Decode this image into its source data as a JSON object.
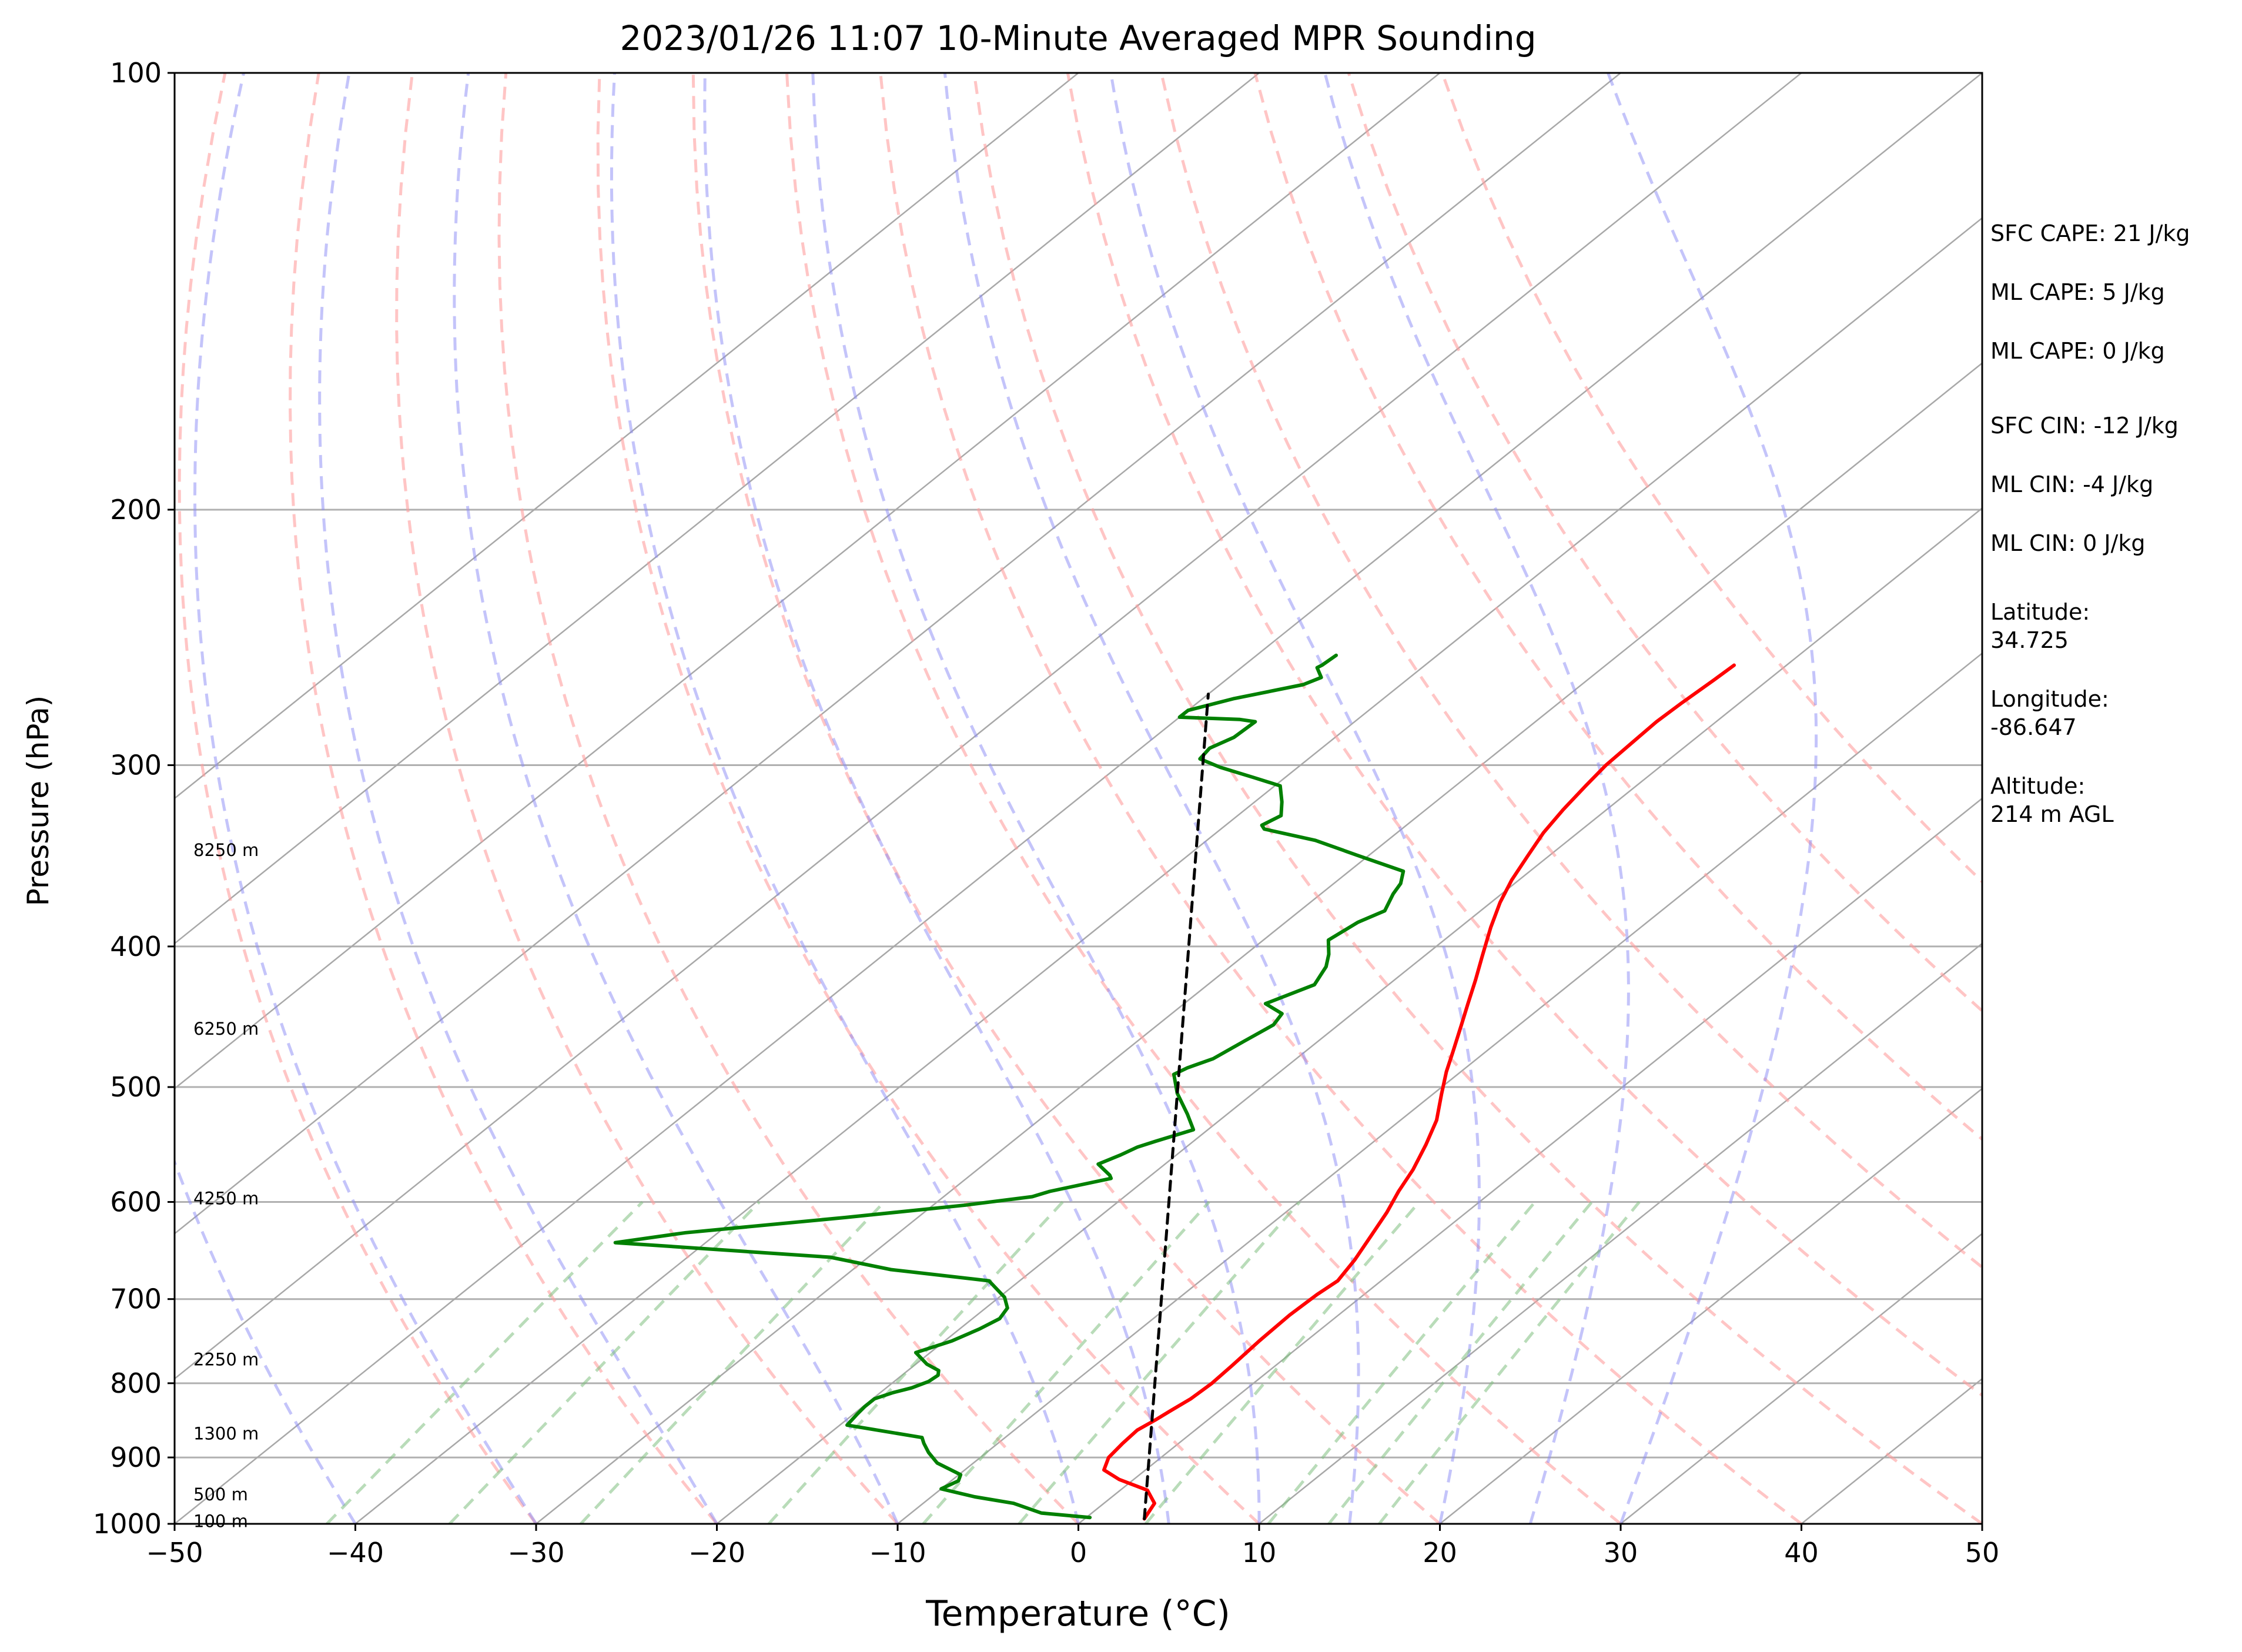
{
  "chart_data": {
    "type": "line",
    "title": "2023/01/26 11:07 10-Minute Averaged MPR Sounding",
    "xlabel": "Temperature (°C)",
    "ylabel": "Pressure (hPa)",
    "xlim": [
      -50,
      50
    ],
    "ylim": [
      1000,
      100
    ],
    "y_scale": "log",
    "x_ticks": [
      "−50",
      "−40",
      "−30",
      "−20",
      "−10",
      "0",
      "10",
      "20",
      "30",
      "40",
      "50"
    ],
    "y_ticks": [
      "100",
      "200",
      "300",
      "400",
      "500",
      "600",
      "700",
      "800",
      "900",
      "1000"
    ],
    "height_labels": [
      "8250 m",
      "6250 m",
      "4250 m",
      "2250 m",
      "1300 m",
      "500 m",
      "100 m"
    ],
    "stats": [
      "SFC CAPE: 21 J/kg",
      "ML CAPE: 5 J/kg",
      "ML CAPE: 0 J/kg",
      "SFC CIN: -12 J/kg",
      "ML CIN: -4 J/kg",
      "ML CIN: 0 J/kg"
    ],
    "location": [
      [
        "Latitude:",
        "34.725"
      ],
      [
        "Longitude:",
        "-86.647"
      ],
      [
        "Altitude:",
        "214 m AGL"
      ]
    ],
    "series": [
      {
        "kind": "temperature",
        "color": "#ff0000",
        "points": [
          [
            3.3,
            992
          ],
          [
            2.8,
            968
          ],
          [
            1.5,
            948
          ],
          [
            -0.8,
            932
          ],
          [
            -2.3,
            918
          ],
          [
            -2.9,
            900
          ],
          [
            -3.1,
            880
          ],
          [
            -3.2,
            862
          ],
          [
            -2.9,
            848
          ],
          [
            -2.7,
            836
          ],
          [
            -2.4,
            820
          ],
          [
            -2.3,
            800
          ],
          [
            -2.4,
            778
          ],
          [
            -2.6,
            748
          ],
          [
            -2.7,
            718
          ],
          [
            -2.6,
            695
          ],
          [
            -2.4,
            680
          ],
          [
            -2.9,
            658
          ],
          [
            -3.6,
            635
          ],
          [
            -4.4,
            610
          ],
          [
            -5.2,
            590
          ],
          [
            -5.9,
            570
          ],
          [
            -6.9,
            548
          ],
          [
            -8.0,
            527
          ],
          [
            -9.5,
            506
          ],
          [
            -10.8,
            488
          ],
          [
            -11.8,
            473
          ],
          [
            -13.2,
            453
          ],
          [
            -14.3,
            438
          ],
          [
            -15.5,
            422
          ],
          [
            -16.8,
            406
          ],
          [
            -18.3,
            388
          ],
          [
            -19.5,
            373
          ],
          [
            -20.4,
            360
          ],
          [
            -21.2,
            346
          ],
          [
            -21.9,
            334
          ],
          [
            -22.4,
            322
          ],
          [
            -22.8,
            310
          ],
          [
            -23.1,
            300
          ],
          [
            -23.2,
            290
          ],
          [
            -23.3,
            280
          ],
          [
            -23.2,
            272
          ],
          [
            -23.0,
            262
          ],
          [
            -22.9,
            256
          ]
        ]
      },
      {
        "kind": "dewpoint",
        "color": "#008000",
        "points": [
          [
            0.2,
            990
          ],
          [
            -2.8,
            983
          ],
          [
            -5.0,
            968
          ],
          [
            -7.6,
            958
          ],
          [
            -10.0,
            946
          ],
          [
            -9.6,
            934
          ],
          [
            -9.9,
            925
          ],
          [
            -12.0,
            908
          ],
          [
            -13.2,
            893
          ],
          [
            -14.1,
            880
          ],
          [
            -14.6,
            872
          ],
          [
            -19.6,
            855
          ],
          [
            -19.8,
            840
          ],
          [
            -19.9,
            830
          ],
          [
            -19.9,
            820
          ],
          [
            -19.3,
            812
          ],
          [
            -18.6,
            806
          ],
          [
            -18.1,
            798
          ],
          [
            -18.0,
            790
          ],
          [
            -18.3,
            784
          ],
          [
            -19.4,
            776
          ],
          [
            -20.8,
            762
          ],
          [
            -19.6,
            748
          ],
          [
            -18.9,
            734
          ],
          [
            -18.5,
            722
          ],
          [
            -18.8,
            710
          ],
          [
            -19.7,
            698
          ],
          [
            -21.7,
            680
          ],
          [
            -27.9,
            668
          ],
          [
            -32.1,
            655
          ],
          [
            -45.0,
            640
          ],
          [
            -41.8,
            630
          ],
          [
            -34.0,
            615
          ],
          [
            -28.2,
            603
          ],
          [
            -25.1,
            595
          ],
          [
            -24.5,
            590
          ],
          [
            -22.0,
            578
          ],
          [
            -22.3,
            575
          ],
          [
            -23.7,
            565
          ],
          [
            -23.1,
            557
          ],
          [
            -22.7,
            550
          ],
          [
            -22.1,
            545
          ],
          [
            -20.8,
            535
          ],
          [
            -22.2,
            522
          ],
          [
            -24.2,
            505
          ],
          [
            -25.7,
            490
          ],
          [
            -25.4,
            485
          ],
          [
            -24.6,
            478
          ],
          [
            -24.1,
            465
          ],
          [
            -23.6,
            453
          ],
          [
            -23.9,
            445
          ],
          [
            -25.5,
            438
          ],
          [
            -24.1,
            425
          ],
          [
            -24.7,
            413
          ],
          [
            -25.4,
            405
          ],
          [
            -26.4,
            396
          ],
          [
            -26.0,
            385
          ],
          [
            -25.3,
            378
          ],
          [
            -26.0,
            368
          ],
          [
            -26.3,
            362
          ],
          [
            -27.0,
            355
          ],
          [
            -30.7,
            346
          ],
          [
            -34.0,
            338
          ],
          [
            -37.6,
            332
          ],
          [
            -38.0,
            330
          ],
          [
            -37.6,
            325
          ],
          [
            -38.5,
            318
          ],
          [
            -39.7,
            310
          ],
          [
            -41.7,
            306
          ],
          [
            -44.3,
            301
          ],
          [
            -46.0,
            297
          ],
          [
            -46.2,
            292
          ],
          [
            -45.6,
            287
          ],
          [
            -45.5,
            280
          ],
          [
            -46.5,
            279
          ],
          [
            -50.0,
            278
          ],
          [
            -50.0,
            275
          ],
          [
            -48.3,
            270
          ],
          [
            -45.4,
            264
          ],
          [
            -44.9,
            261
          ],
          [
            -45.8,
            257
          ],
          [
            -45.7,
            256
          ],
          [
            -45.6,
            252
          ]
        ]
      },
      {
        "kind": "parcel",
        "color": "#000000",
        "points": [
          [
            3.3,
            992
          ],
          [
            -50.0,
            268
          ]
        ]
      }
    ],
    "background_lines": {
      "isotherms_deg_c": [
        -100,
        -90,
        -80,
        -70,
        -60,
        -50,
        -40,
        -30,
        -20,
        -10,
        0,
        10,
        20,
        30,
        40,
        50
      ],
      "isobars_hpa": [
        100,
        200,
        300,
        400,
        500,
        600,
        700,
        800,
        900,
        1000
      ],
      "dry_adiabats_theta_deg_c": [
        -30,
        -20,
        -10,
        0,
        10,
        20,
        30,
        40,
        50,
        60,
        70,
        80,
        90,
        100
      ],
      "moist_adiabats_deg_c": [
        -50,
        -40,
        -30,
        -20,
        -10,
        0,
        5,
        10,
        15,
        20,
        25,
        30
      ],
      "mixing_ratio_lines_g_kg": [
        0.1,
        0.2,
        0.4,
        1,
        2,
        3,
        5,
        8,
        10,
        12
      ]
    }
  }
}
